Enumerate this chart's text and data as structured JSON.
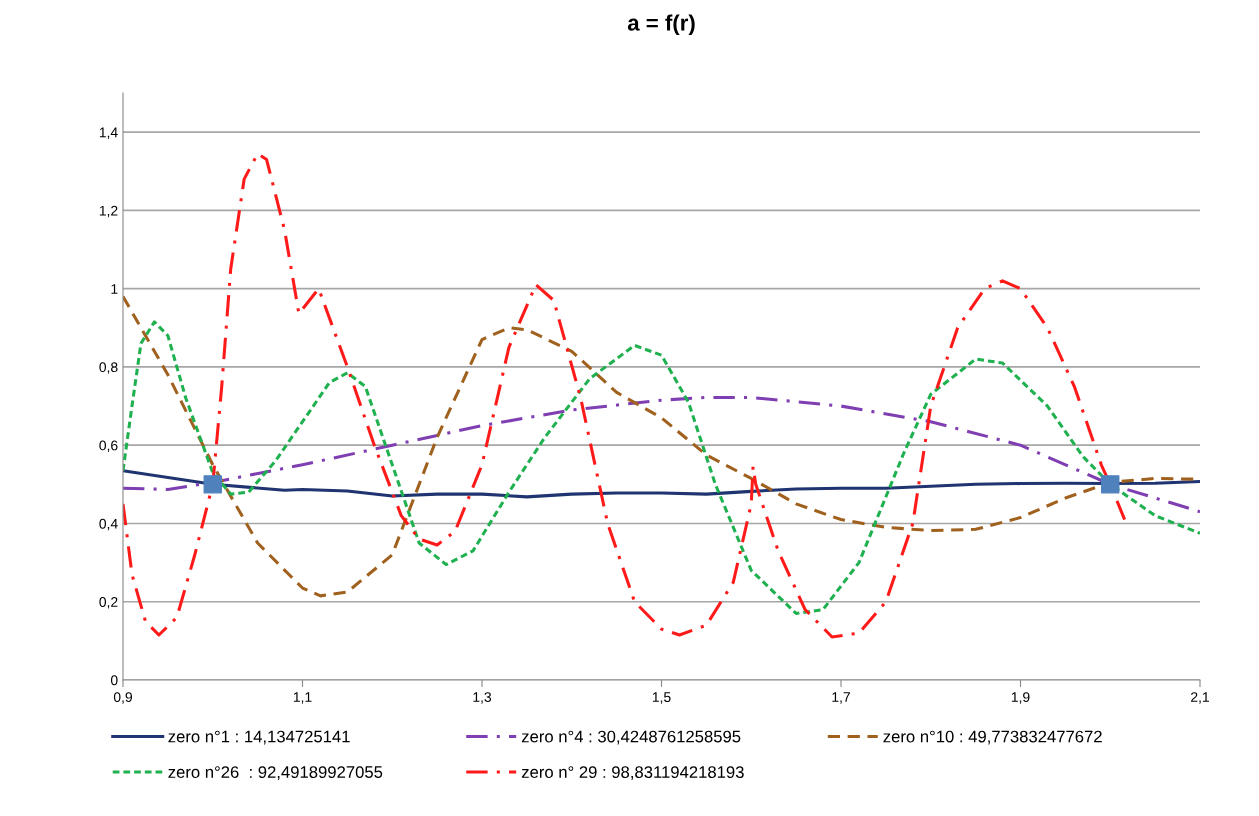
{
  "chart_data": {
    "type": "line",
    "title": "a = f(r)",
    "xlim": [
      0.9,
      2.1
    ],
    "xticks": [
      {
        "value": 0.9,
        "label": "0,9"
      },
      {
        "value": 1.1,
        "label": "1,1"
      },
      {
        "value": 1.3,
        "label": "1,3"
      },
      {
        "value": 1.5,
        "label": "1,5"
      },
      {
        "value": 1.7,
        "label": "1,7"
      },
      {
        "value": 1.9,
        "label": "1,9"
      },
      {
        "value": 2.1,
        "label": "2,1"
      }
    ],
    "ylim": [
      0,
      1.5
    ],
    "yticks": [
      0,
      {
        "value": 0.2,
        "label": "0,2"
      },
      {
        "value": 0.4,
        "label": "0,4"
      },
      {
        "value": 0.6,
        "label": "0,6"
      },
      {
        "value": 0.8,
        "label": "0,8"
      },
      1,
      {
        "value": 1.2,
        "label": "1,2"
      },
      {
        "value": 1.4,
        "label": "1,4"
      }
    ],
    "grid": "y",
    "legend": "bottom",
    "series": [
      {
        "name": "zero n°1 : 14,134725141",
        "color": "#1f3470",
        "line_style": "solid",
        "x": [
          0.9,
          1.0,
          1.08,
          1.1,
          1.15,
          1.2,
          1.25,
          1.3,
          1.35,
          1.4,
          1.45,
          1.5,
          1.55,
          1.6,
          1.65,
          1.7,
          1.75,
          1.8,
          1.85,
          1.9,
          1.95,
          2.0,
          2.05,
          2.1
        ],
        "values": [
          0.535,
          0.5,
          0.485,
          0.487,
          0.483,
          0.47,
          0.475,
          0.475,
          0.468,
          0.475,
          0.478,
          0.478,
          0.475,
          0.482,
          0.488,
          0.49,
          0.49,
          0.495,
          0.5,
          0.502,
          0.503,
          0.502,
          0.503,
          0.507
        ]
      },
      {
        "name": "zero n°4 : 30,4248761258595",
        "color": "#7f3fb2",
        "line_style": "dashdot",
        "x": [
          0.9,
          0.95,
          1.0,
          1.1,
          1.2,
          1.3,
          1.4,
          1.5,
          1.55,
          1.6,
          1.7,
          1.8,
          1.9,
          2.0,
          2.1
        ],
        "values": [
          0.49,
          0.487,
          0.505,
          0.55,
          0.6,
          0.65,
          0.69,
          0.715,
          0.722,
          0.722,
          0.7,
          0.66,
          0.6,
          0.5,
          0.43
        ]
      },
      {
        "name": "zero n°10 : 49,773832477672",
        "color": "#a0611f",
        "line_style": "dashed",
        "x": [
          0.9,
          0.95,
          1.0,
          1.05,
          1.1,
          1.12,
          1.15,
          1.2,
          1.25,
          1.3,
          1.33,
          1.35,
          1.4,
          1.45,
          1.5,
          1.55,
          1.6,
          1.65,
          1.7,
          1.75,
          1.8,
          1.85,
          1.9,
          1.95,
          2.0,
          2.05,
          2.1
        ],
        "values": [
          0.98,
          0.78,
          0.55,
          0.35,
          0.235,
          0.215,
          0.225,
          0.32,
          0.62,
          0.87,
          0.9,
          0.895,
          0.84,
          0.735,
          0.67,
          0.575,
          0.515,
          0.45,
          0.41,
          0.39,
          0.382,
          0.385,
          0.415,
          0.465,
          0.505,
          0.515,
          0.513
        ]
      },
      {
        "name": "zero n°26  : 92,49189927055",
        "color": "#1fb04f",
        "line_style": "dotted",
        "x": [
          0.9,
          0.91,
          0.92,
          0.935,
          0.95,
          0.97,
          1.0,
          1.02,
          1.04,
          1.07,
          1.1,
          1.13,
          1.15,
          1.17,
          1.2,
          1.23,
          1.26,
          1.29,
          1.33,
          1.37,
          1.42,
          1.47,
          1.5,
          1.53,
          1.56,
          1.6,
          1.65,
          1.68,
          1.72,
          1.77,
          1.8,
          1.85,
          1.88,
          1.93,
          1.97,
          2.0,
          2.05,
          2.1
        ],
        "values": [
          0.535,
          0.7,
          0.86,
          0.915,
          0.88,
          0.72,
          0.53,
          0.475,
          0.48,
          0.56,
          0.66,
          0.76,
          0.785,
          0.75,
          0.55,
          0.35,
          0.295,
          0.33,
          0.48,
          0.62,
          0.77,
          0.855,
          0.83,
          0.71,
          0.5,
          0.28,
          0.17,
          0.18,
          0.3,
          0.58,
          0.73,
          0.82,
          0.81,
          0.7,
          0.57,
          0.5,
          0.42,
          0.375
        ]
      },
      {
        "name": "zero n° 29 : 98,831194218193",
        "color": "#ff1a1a",
        "line_style": "dashdot",
        "x": [
          0.9,
          0.91,
          0.925,
          0.94,
          0.96,
          0.98,
          1.0,
          1.01,
          1.02,
          1.035,
          1.05,
          1.06,
          1.08,
          1.096,
          1.118,
          1.15,
          1.18,
          1.21,
          1.23,
          1.25,
          1.27,
          1.3,
          1.33,
          1.36,
          1.38,
          1.41,
          1.44,
          1.47,
          1.5,
          1.52,
          1.55,
          1.58,
          1.6,
          1.602,
          1.605,
          1.63,
          1.66,
          1.69,
          1.72,
          1.75,
          1.78,
          1.8,
          1.83,
          1.86,
          1.88,
          1.9,
          1.93,
          1.96,
          1.99,
          2.0,
          2.016
        ],
        "values": [
          0.45,
          0.27,
          0.15,
          0.115,
          0.16,
          0.32,
          0.5,
          0.75,
          1.05,
          1.28,
          1.345,
          1.33,
          1.15,
          0.936,
          1.0,
          0.8,
          0.6,
          0.42,
          0.36,
          0.345,
          0.38,
          0.55,
          0.85,
          1.01,
          0.97,
          0.72,
          0.4,
          0.2,
          0.13,
          0.115,
          0.14,
          0.25,
          0.45,
          0.545,
          0.5,
          0.33,
          0.18,
          0.11,
          0.12,
          0.2,
          0.4,
          0.7,
          0.9,
          1.0,
          1.02,
          1.0,
          0.9,
          0.75,
          0.55,
          0.5,
          0.41
        ]
      },
      {
        "type": "scatter",
        "marker": "square",
        "color": "#4f81bd",
        "x": [
          1.0,
          2.0
        ],
        "values": [
          0.5,
          0.5
        ]
      }
    ]
  }
}
